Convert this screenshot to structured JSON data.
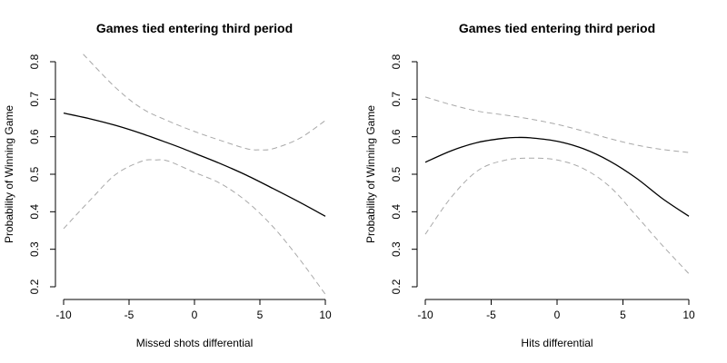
{
  "chart_data": [
    {
      "type": "line",
      "title": "Games tied entering third period",
      "xlabel": "Missed shots differential",
      "ylabel": "Probability of Winning Game",
      "xlim": [
        -10,
        10
      ],
      "ylim": [
        0.2,
        0.8
      ],
      "xticks": [
        "-10",
        "-5",
        "0",
        "5",
        "10"
      ],
      "yticks": [
        "0.2",
        "0.3",
        "0.4",
        "0.5",
        "0.6",
        "0.7",
        "0.8"
      ],
      "grid": false,
      "series": [
        {
          "role": "fit",
          "x": [
            -10,
            -8,
            -6,
            -4,
            -2,
            -1,
            0,
            2,
            4,
            6,
            8,
            10
          ],
          "y": [
            0.663,
            0.648,
            0.63,
            0.608,
            0.583,
            0.57,
            0.556,
            0.528,
            0.497,
            0.462,
            0.426,
            0.388
          ]
        },
        {
          "role": "upper",
          "x": [
            -8.5,
            -6,
            -4,
            -2,
            0,
            2,
            4,
            5,
            6,
            8,
            10
          ],
          "y": [
            0.82,
            0.73,
            0.675,
            0.642,
            0.614,
            0.59,
            0.568,
            0.565,
            0.568,
            0.595,
            0.643
          ]
        },
        {
          "role": "lower",
          "x": [
            -10,
            -8,
            -6,
            -4,
            -3,
            -2,
            0,
            2,
            4,
            6,
            8,
            10
          ],
          "y": [
            0.355,
            0.43,
            0.5,
            0.535,
            0.538,
            0.535,
            0.505,
            0.475,
            0.427,
            0.36,
            0.275,
            0.18
          ]
        }
      ]
    },
    {
      "type": "line",
      "title": "Games tied entering third period",
      "xlabel": "Hits differential",
      "ylabel": "Probability of Winning Game",
      "xlim": [
        -10,
        10
      ],
      "ylim": [
        0.2,
        0.8
      ],
      "xticks": [
        "-10",
        "-5",
        "0",
        "5",
        "10"
      ],
      "yticks": [
        "0.2",
        "0.3",
        "0.4",
        "0.5",
        "0.6",
        "0.7",
        "0.8"
      ],
      "grid": false,
      "series": [
        {
          "role": "fit",
          "x": [
            -10,
            -8,
            -6,
            -4,
            -3,
            -2,
            0,
            2,
            4,
            6,
            8,
            10
          ],
          "y": [
            0.532,
            0.563,
            0.585,
            0.596,
            0.598,
            0.597,
            0.588,
            0.568,
            0.535,
            0.49,
            0.435,
            0.388
          ]
        },
        {
          "role": "upper",
          "x": [
            -10,
            -8,
            -6,
            -4,
            -2,
            0,
            2,
            4,
            6,
            8,
            10
          ],
          "y": [
            0.706,
            0.685,
            0.668,
            0.658,
            0.647,
            0.633,
            0.615,
            0.595,
            0.578,
            0.566,
            0.558
          ]
        },
        {
          "role": "lower",
          "x": [
            -10,
            -8,
            -6,
            -4,
            -2,
            0,
            2,
            4,
            6,
            8,
            10
          ],
          "y": [
            0.34,
            0.44,
            0.51,
            0.537,
            0.543,
            0.538,
            0.515,
            0.467,
            0.39,
            0.31,
            0.235
          ]
        }
      ]
    }
  ]
}
